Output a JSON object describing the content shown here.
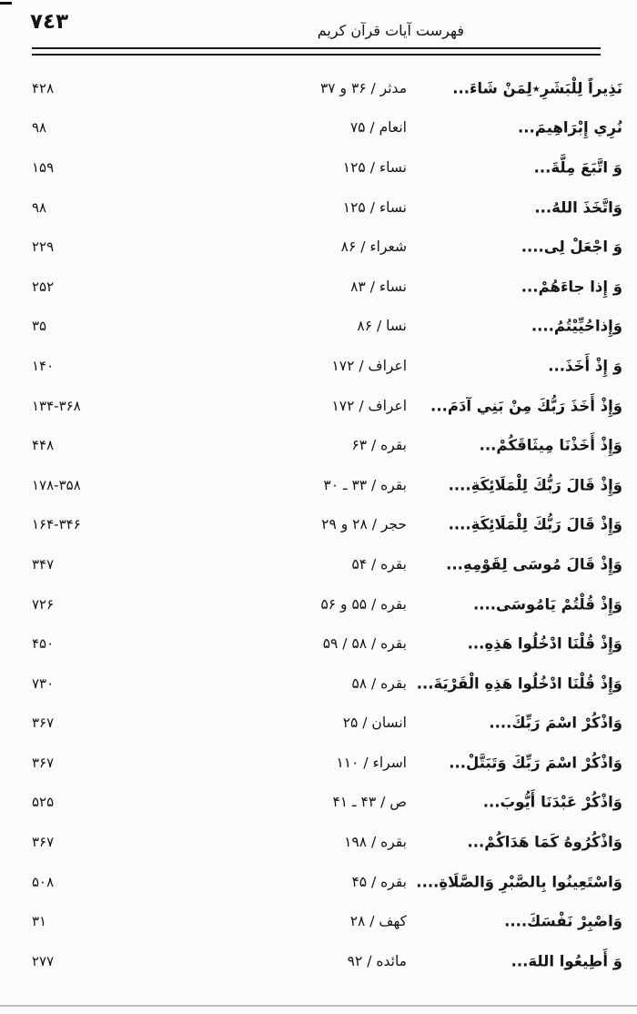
{
  "header": {
    "page_number": "٧٤٣",
    "title": "فهرست آیات قرآن کریم"
  },
  "index": {
    "rows": [
      {
        "verse": "نَذِيراً لِلْبَشَرِ٭لِمَنْ شَاءَ...",
        "ref": "مدثر / ۳۶ و ۳۷",
        "page": "۴۲۸"
      },
      {
        "verse": "نُرِي إِبْرَاهِيمَ...",
        "ref": "انعام / ۷۵",
        "page": "۹۸"
      },
      {
        "verse": "وَ اتَّبَعَ مِلَّةَ...",
        "ref": "نساء / ۱۲۵",
        "page": "۱۵۹"
      },
      {
        "verse": "وَاتَّخَذَ اللهُ...",
        "ref": "نساء / ۱۲۵",
        "page": "۹۸"
      },
      {
        "verse": "وَ اجْعَلْ لِى....",
        "ref": "شعراء / ۸۶",
        "page": "۲۲۹"
      },
      {
        "verse": "وَ إِذا جاءَهُمْ...",
        "ref": "نساء / ۸۳",
        "page": "۲۵۲"
      },
      {
        "verse": "وَإِذاحُيِّيْتُمُ....",
        "ref": "نسا / ۸۶",
        "page": "۳۵"
      },
      {
        "verse": "وَ إِذْ أَخَذَ...",
        "ref": "اعراف / ۱۷۲",
        "page": "۱۴۰"
      },
      {
        "verse": "وَإِذْ أَخَذَ رَبُّكَ مِنْ بَنِي آدَمَ...",
        "ref": "اعراف / ۱۷۲",
        "page": "۱۳۴-۳۶۸"
      },
      {
        "verse": "وَإِذْ أَخَذْنَا مِيثَاقَكُمْ...",
        "ref": "بقره / ۶۳",
        "page": "۴۴۸"
      },
      {
        "verse": "وَإِذْ قَالَ رَبُّكَ لِلْمَلَائِكَةِ....",
        "ref": "بقره / ۳۳ ـ ۳۰",
        "page": "۱۷۸-۳۵۸"
      },
      {
        "verse": "وَإِذْ قَالَ رَبُّكَ لِلْمَلَائِكَةِ....",
        "ref": "حجر / ۲۸ و ۲۹",
        "page": "۱۶۴-۳۴۶"
      },
      {
        "verse": "وَإِذْ قَالَ مُوسَى لِقَوْمِهِ...",
        "ref": "بقره / ۵۴",
        "page": "۳۴۷"
      },
      {
        "verse": "وَإِذْ قُلْتُمْ يَامُوسَى....",
        "ref": "بقره / ۵۵ و ۵۶",
        "page": "۷۲۶"
      },
      {
        "verse": "وَإِذْ قُلْنَا ادْخُلُوا هَذِهِ...",
        "ref": "بقره / ۵۸ / ۵۹",
        "page": "۴۵۰"
      },
      {
        "verse": "وَإِذْ قُلْنَا ادْخُلُوا هَذِهِ الْقَرْيَةَ...",
        "ref": "بقره / ۵۸",
        "page": "۷۳۰"
      },
      {
        "verse": "وَاذْكُرْ اسْمَ رَبِّكَ....",
        "ref": "انسان / ۲۵",
        "page": "۳۶۷"
      },
      {
        "verse": "وَاذْكُرْ اسْمَ رَبِّكَ وَتَبَتَّلْ...",
        "ref": "اسراء / ۱۱۰",
        "page": "۳۶۷"
      },
      {
        "verse": "وَاذْكُرْ عَبْدَنَا أَيُّوبَ...",
        "ref": "ص / ۴۳ ـ ۴۱",
        "page": "۵۲۵"
      },
      {
        "verse": "وَاذْكُرُوهُ كَمَا هَدَاكُمْ...",
        "ref": "بقره / ۱۹۸",
        "page": "۳۶۷"
      },
      {
        "verse": "وَاسْتَعِينُوا بِالصَّبْرِ وَالصَّلَاةِ....",
        "ref": "بقره / ۴۵",
        "page": "۵۰۸"
      },
      {
        "verse": "وَاصْبِرْ نَفْسَكَ....",
        "ref": "کهف / ۲۸",
        "page": "۳۱"
      },
      {
        "verse": "وَ أَطِيعُوا اللهَ...",
        "ref": "مائده / ۹۲",
        "page": "۲۷۷"
      }
    ]
  }
}
